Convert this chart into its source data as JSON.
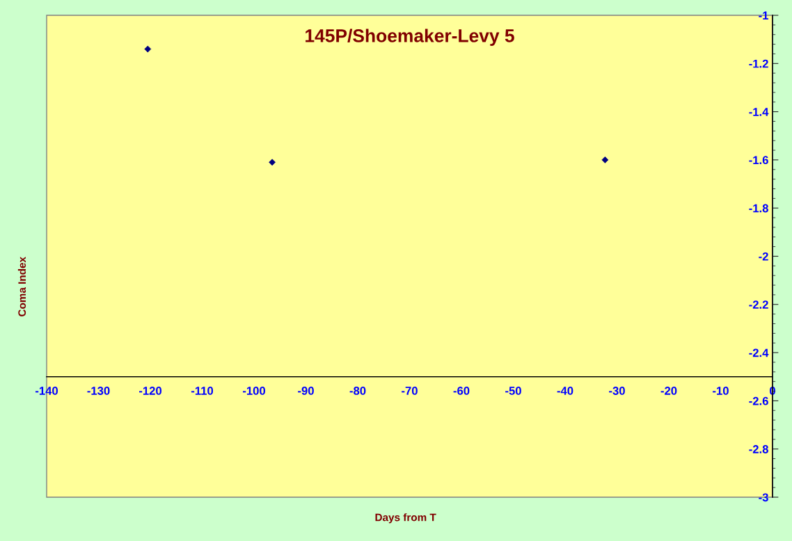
{
  "chart_data": {
    "type": "scatter",
    "title": "145P/Shoemaker-Levy 5",
    "xlabel": "Days from T",
    "ylabel": "Coma Index",
    "x": [
      -120.5,
      -96.5,
      -32.3
    ],
    "series": [
      {
        "color": "#000080",
        "values": [
          -1.14,
          -1.61,
          -1.6
        ]
      }
    ],
    "marker": "diamond",
    "xlim": [
      -140,
      0
    ],
    "xticks": [
      -140,
      -130,
      -120,
      -110,
      -100,
      -90,
      -80,
      -70,
      -60,
      -50,
      -40,
      -30,
      -20,
      -10,
      0
    ],
    "ylim": [
      -3,
      -1
    ],
    "yticks": [
      -3,
      -2.8,
      -2.6,
      -2.4,
      -2.2,
      -2,
      -1.8,
      -1.6,
      -1.4,
      -1.2,
      -1
    ],
    "grid": false
  }
}
